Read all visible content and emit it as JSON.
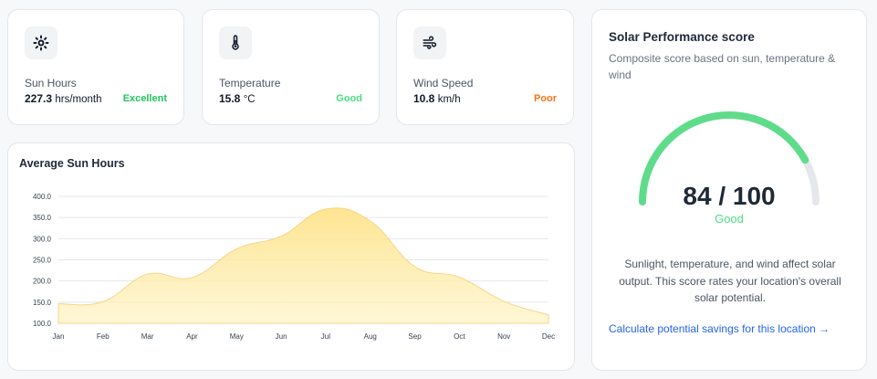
{
  "stats": [
    {
      "label": "Sun Hours",
      "value": "227.3",
      "unit": "hrs/month",
      "rating": "Excellent",
      "rating_color": "#22c55e",
      "icon": "sun-icon"
    },
    {
      "label": "Temperature",
      "value": "15.8",
      "unit": "°C",
      "rating": "Good",
      "rating_color": "#4ade80",
      "icon": "thermometer-icon"
    },
    {
      "label": "Wind Speed",
      "value": "10.8",
      "unit": "km/h",
      "rating": "Poor",
      "rating_color": "#f97316",
      "icon": "wind-icon"
    }
  ],
  "chart": {
    "title": "Average Sun Hours"
  },
  "chart_data": {
    "type": "area",
    "title": "Average Sun Hours",
    "xlabel": "",
    "ylabel": "",
    "categories": [
      "Jan",
      "Feb",
      "Mar",
      "Apr",
      "May",
      "Jun",
      "Jul",
      "Aug",
      "Sep",
      "Oct",
      "Nov",
      "Dec"
    ],
    "values": [
      146,
      151,
      216,
      208,
      276,
      306,
      370,
      342,
      234,
      209,
      152,
      120
    ],
    "ylim": [
      100,
      400
    ],
    "yticks": [
      "100.0",
      "150.0",
      "200.0",
      "250.0",
      "300.0",
      "350.0",
      "400.0"
    ],
    "grid": true,
    "fill_color": "#fde68a",
    "line_color": "#f6d58a"
  },
  "performance": {
    "title": "Solar Performance score",
    "subtitle": "Composite score based on sun, temperature & wind",
    "score": 84,
    "max": 100,
    "score_text": "84 / 100",
    "label": "Good",
    "gauge_color": "#5fdc8a",
    "track_color": "#e5e7eb",
    "description": "Sunlight, temperature, and wind affect solar output. This score rates your location's overall solar potential.",
    "link": "Calculate potential savings for this location →"
  }
}
